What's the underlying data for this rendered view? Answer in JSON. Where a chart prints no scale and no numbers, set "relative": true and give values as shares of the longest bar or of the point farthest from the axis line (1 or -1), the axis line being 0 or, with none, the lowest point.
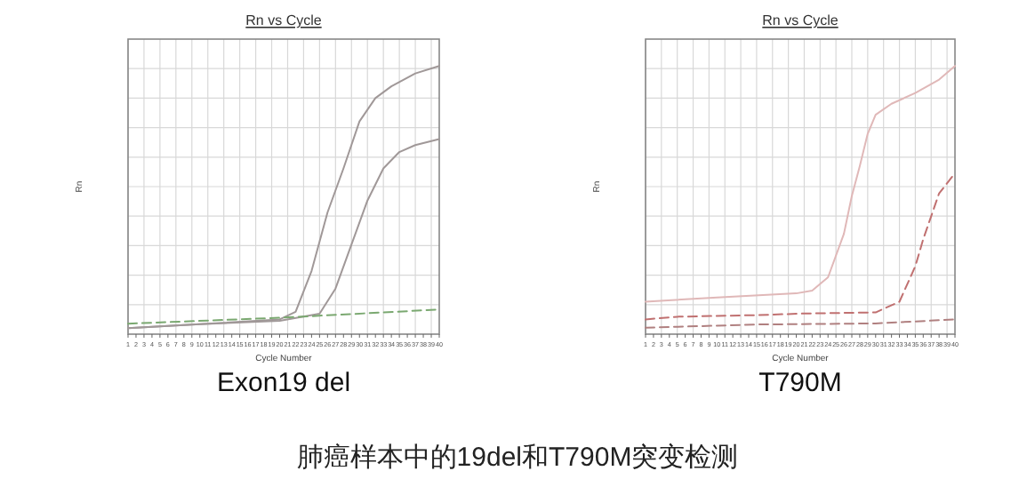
{
  "chart_data": [
    {
      "type": "line",
      "title": "Rn vs Cycle",
      "ylabel": "Rn",
      "xlabel": "Cycle Number",
      "relative": true,
      "grid": true,
      "marker": "none",
      "xlim": [
        1,
        40
      ],
      "xticks": [
        1,
        2,
        3,
        4,
        5,
        6,
        7,
        8,
        9,
        10,
        11,
        12,
        13,
        14,
        15,
        16,
        17,
        18,
        19,
        20,
        21,
        22,
        23,
        24,
        25,
        26,
        27,
        28,
        29,
        30,
        31,
        32,
        33,
        34,
        35,
        36,
        37,
        38,
        39,
        40
      ],
      "annotations": [
        "Exon19 del",
        "肺癌样本中的19del和T790M突变检测"
      ],
      "series": [
        {
          "color": "#a09898",
          "line_style": "solid",
          "x": [
            1,
            10,
            20,
            22,
            24,
            26,
            28,
            30,
            32,
            34,
            37,
            40
          ],
          "values": [
            0.022,
            0.037,
            0.055,
            0.083,
            0.236,
            0.454,
            0.618,
            0.793,
            0.88,
            0.924,
            0.972,
            1
          ]
        },
        {
          "color": "#a09898",
          "line_style": "solid",
          "x": [
            1,
            10,
            20,
            25,
            27,
            29,
            31,
            33,
            35,
            37,
            40
          ],
          "values": [
            0.022,
            0.037,
            0.05,
            0.076,
            0.17,
            0.334,
            0.498,
            0.618,
            0.679,
            0.705,
            0.727
          ]
        },
        {
          "color": "#7aa870",
          "line_style": "dashed",
          "x": [
            1,
            20,
            40
          ],
          "values": [
            0.039,
            0.061,
            0.092
          ]
        }
      ]
    },
    {
      "type": "line",
      "title": "Rn vs Cycle",
      "ylabel": "Rn",
      "xlabel": "Cycle Number",
      "relative": true,
      "grid": true,
      "marker": "none",
      "xlim": [
        1,
        40
      ],
      "xticks": [
        1,
        2,
        3,
        4,
        5,
        6,
        7,
        8,
        9,
        10,
        11,
        12,
        13,
        14,
        15,
        16,
        17,
        18,
        19,
        20,
        21,
        22,
        23,
        24,
        25,
        26,
        27,
        28,
        29,
        30,
        31,
        32,
        33,
        34,
        35,
        36,
        37,
        38,
        39,
        40
      ],
      "annotations": [
        "T790M"
      ],
      "series": [
        {
          "color": "#e0b8b8",
          "line_style": "solid",
          "x": [
            1,
            10,
            20,
            22,
            24,
            26,
            27,
            28,
            29,
            30,
            32,
            35,
            38,
            40
          ],
          "values": [
            0.121,
            0.137,
            0.152,
            0.162,
            0.212,
            0.374,
            0.515,
            0.626,
            0.747,
            0.818,
            0.859,
            0.899,
            0.949,
            1
          ]
        },
        {
          "color": "#c07070",
          "line_style": "dashed",
          "x": [
            1,
            5,
            15,
            21,
            30,
            33,
            35,
            36,
            38,
            40
          ],
          "values": [
            0.055,
            0.065,
            0.071,
            0.077,
            0.081,
            0.121,
            0.253,
            0.354,
            0.525,
            0.6
          ]
        },
        {
          "color": "#b08080",
          "line_style": "dashed",
          "x": [
            1,
            15,
            30,
            40
          ],
          "values": [
            0.024,
            0.036,
            0.04,
            0.055
          ]
        }
      ]
    }
  ]
}
